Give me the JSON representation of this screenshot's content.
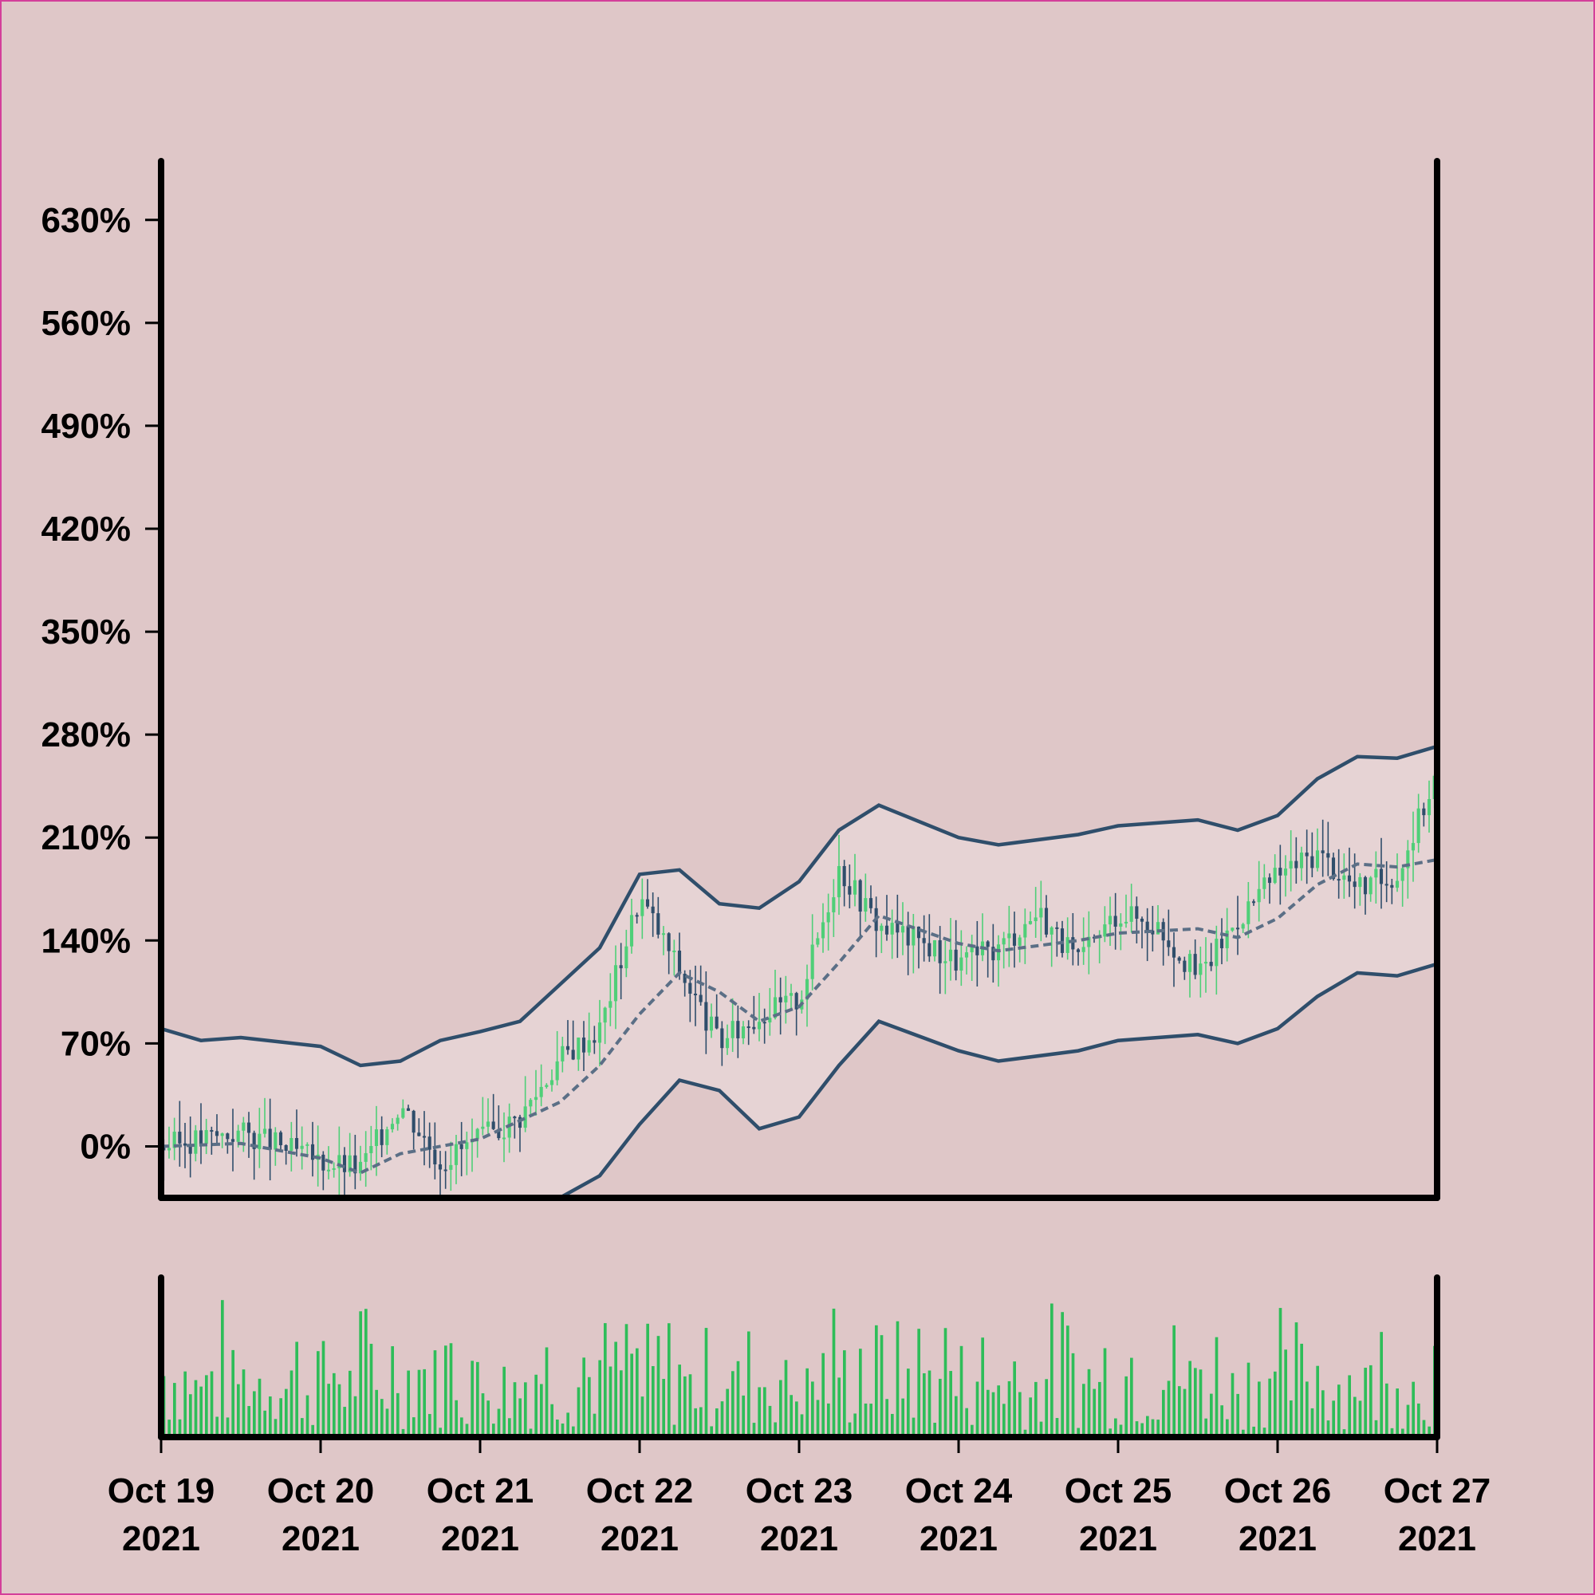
{
  "chart_data": {
    "type": "candlestick",
    "title": "",
    "xlabel": "",
    "ylabel": "",
    "y_unit": "%",
    "ylim": [
      -35,
      670
    ],
    "y_ticks": [
      0,
      70,
      140,
      210,
      280,
      350,
      420,
      490,
      560,
      630
    ],
    "y_tick_labels": [
      "0%",
      "70%",
      "140%",
      "210%",
      "280%",
      "350%",
      "420%",
      "490%",
      "560%",
      "630%"
    ],
    "x_range": [
      "2021-10-19",
      "2021-10-27"
    ],
    "x_tick_labels": [
      {
        "date": "2021-10-19",
        "line1": "Oct 19",
        "line2": "2021"
      },
      {
        "date": "2021-10-20",
        "line1": "Oct 20",
        "line2": "2021"
      },
      {
        "date": "2021-10-21",
        "line1": "Oct 21",
        "line2": "2021"
      },
      {
        "date": "2021-10-22",
        "line1": "Oct 22",
        "line2": "2021"
      },
      {
        "date": "2021-10-23",
        "line1": "Oct 23",
        "line2": "2021"
      },
      {
        "date": "2021-10-24",
        "line1": "Oct 24",
        "line2": "2021"
      },
      {
        "date": "2021-10-25",
        "line1": "Oct 25",
        "line2": "2021"
      },
      {
        "date": "2021-10-26",
        "line1": "Oct 26",
        "line2": "2021"
      },
      {
        "date": "2021-10-27",
        "line1": "Oct 27",
        "line2": "2021"
      }
    ],
    "overlays": [
      "bollinger upper band",
      "moving average (dashed)",
      "bollinger lower band"
    ],
    "price_close_path": [
      [
        "2021-10-19T00:00",
        0
      ],
      [
        "2021-10-19T12:00",
        10
      ],
      [
        "2021-10-20T00:00",
        -10
      ],
      [
        "2021-10-20T06:00",
        -15
      ],
      [
        "2021-10-20T12:00",
        30
      ],
      [
        "2021-10-20T18:00",
        -10
      ],
      [
        "2021-10-21T00:00",
        5
      ],
      [
        "2021-10-21T06:00",
        20
      ],
      [
        "2021-10-21T12:00",
        60
      ],
      [
        "2021-10-21T18:00",
        80
      ],
      [
        "2021-10-22T00:00",
        170
      ],
      [
        "2021-10-22T06:00",
        120
      ],
      [
        "2021-10-22T12:00",
        70
      ],
      [
        "2021-10-22T18:00",
        90
      ],
      [
        "2021-10-23T00:00",
        100
      ],
      [
        "2021-10-23T06:00",
        190
      ],
      [
        "2021-10-23T12:00",
        150
      ],
      [
        "2021-10-23T18:00",
        140
      ],
      [
        "2021-10-24T00:00",
        125
      ],
      [
        "2021-10-24T06:00",
        135
      ],
      [
        "2021-10-24T12:00",
        160
      ],
      [
        "2021-10-24T18:00",
        125
      ],
      [
        "2021-10-25T00:00",
        160
      ],
      [
        "2021-10-25T06:00",
        150
      ],
      [
        "2021-10-25T12:00",
        115
      ],
      [
        "2021-10-25T18:00",
        155
      ],
      [
        "2021-10-26T00:00",
        185
      ],
      [
        "2021-10-26T06:00",
        200
      ],
      [
        "2021-10-26T12:00",
        175
      ],
      [
        "2021-10-26T18:00",
        185
      ],
      [
        "2021-10-27T00:00",
        255
      ]
    ],
    "moving_average_path": [
      [
        "2021-10-19T00:00",
        0
      ],
      [
        "2021-10-19T12:00",
        2
      ],
      [
        "2021-10-20T00:00",
        -8
      ],
      [
        "2021-10-20T06:00",
        -18
      ],
      [
        "2021-10-20T12:00",
        -5
      ],
      [
        "2021-10-21T00:00",
        5
      ],
      [
        "2021-10-21T12:00",
        30
      ],
      [
        "2021-10-21T18:00",
        55
      ],
      [
        "2021-10-22T00:00",
        90
      ],
      [
        "2021-10-22T06:00",
        118
      ],
      [
        "2021-10-22T12:00",
        105
      ],
      [
        "2021-10-22T18:00",
        85
      ],
      [
        "2021-10-23T00:00",
        95
      ],
      [
        "2021-10-23T06:00",
        125
      ],
      [
        "2021-10-23T12:00",
        157
      ],
      [
        "2021-10-24T00:00",
        138
      ],
      [
        "2021-10-24T06:00",
        133
      ],
      [
        "2021-10-24T18:00",
        140
      ],
      [
        "2021-10-25T00:00",
        145
      ],
      [
        "2021-10-25T12:00",
        148
      ],
      [
        "2021-10-25T18:00",
        142
      ],
      [
        "2021-10-26T00:00",
        155
      ],
      [
        "2021-10-26T06:00",
        178
      ],
      [
        "2021-10-26T12:00",
        192
      ],
      [
        "2021-10-26T18:00",
        190
      ],
      [
        "2021-10-27T00:00",
        195
      ]
    ],
    "upper_band_path": [
      [
        "2021-10-19T00:00",
        80
      ],
      [
        "2021-10-19T06:00",
        72
      ],
      [
        "2021-10-19T12:00",
        74
      ],
      [
        "2021-10-20T00:00",
        68
      ],
      [
        "2021-10-20T06:00",
        55
      ],
      [
        "2021-10-20T12:00",
        58
      ],
      [
        "2021-10-20T18:00",
        72
      ],
      [
        "2021-10-21T00:00",
        78
      ],
      [
        "2021-10-21T06:00",
        85
      ],
      [
        "2021-10-21T12:00",
        110
      ],
      [
        "2021-10-21T18:00",
        135
      ],
      [
        "2021-10-22T00:00",
        185
      ],
      [
        "2021-10-22T06:00",
        188
      ],
      [
        "2021-10-22T12:00",
        165
      ],
      [
        "2021-10-22T18:00",
        162
      ],
      [
        "2021-10-23T00:00",
        180
      ],
      [
        "2021-10-23T06:00",
        215
      ],
      [
        "2021-10-23T12:00",
        232
      ],
      [
        "2021-10-24T00:00",
        210
      ],
      [
        "2021-10-24T06:00",
        205
      ],
      [
        "2021-10-24T18:00",
        212
      ],
      [
        "2021-10-25T00:00",
        218
      ],
      [
        "2021-10-25T12:00",
        222
      ],
      [
        "2021-10-25T18:00",
        215
      ],
      [
        "2021-10-26T00:00",
        225
      ],
      [
        "2021-10-26T06:00",
        250
      ],
      [
        "2021-10-26T12:00",
        265
      ],
      [
        "2021-10-26T18:00",
        264
      ],
      [
        "2021-10-27T00:00",
        272
      ]
    ],
    "lower_band_path": [
      [
        "2021-10-21T12:00",
        -35
      ],
      [
        "2021-10-21T18:00",
        -20
      ],
      [
        "2021-10-22T00:00",
        15
      ],
      [
        "2021-10-22T06:00",
        45
      ],
      [
        "2021-10-22T12:00",
        38
      ],
      [
        "2021-10-22T18:00",
        12
      ],
      [
        "2021-10-23T00:00",
        20
      ],
      [
        "2021-10-23T06:00",
        55
      ],
      [
        "2021-10-23T12:00",
        85
      ],
      [
        "2021-10-24T00:00",
        65
      ],
      [
        "2021-10-24T06:00",
        58
      ],
      [
        "2021-10-24T18:00",
        65
      ],
      [
        "2021-10-25T00:00",
        72
      ],
      [
        "2021-10-25T12:00",
        76
      ],
      [
        "2021-10-25T18:00",
        70
      ],
      [
        "2021-10-26T00:00",
        80
      ],
      [
        "2021-10-26T06:00",
        102
      ],
      [
        "2021-10-26T12:00",
        118
      ],
      [
        "2021-10-26T18:00",
        116
      ],
      [
        "2021-10-27T00:00",
        124
      ]
    ],
    "volume": {
      "bar_count": 240,
      "seed": 7,
      "min_relative": 0.05,
      "max_relative": 1.0
    },
    "colors": {
      "background": "#dfc7c8",
      "band_fill": "#e6d3d4",
      "band_line": "#2f4e6b",
      "ma_line": "#5b6f86",
      "up_candle": "#4fcf78",
      "down_candle": "#2f4e6b",
      "volume_bar": "#2ebd59",
      "axis": "#000000",
      "border": "#d43f9a"
    },
    "grid": false,
    "legend": "none"
  }
}
